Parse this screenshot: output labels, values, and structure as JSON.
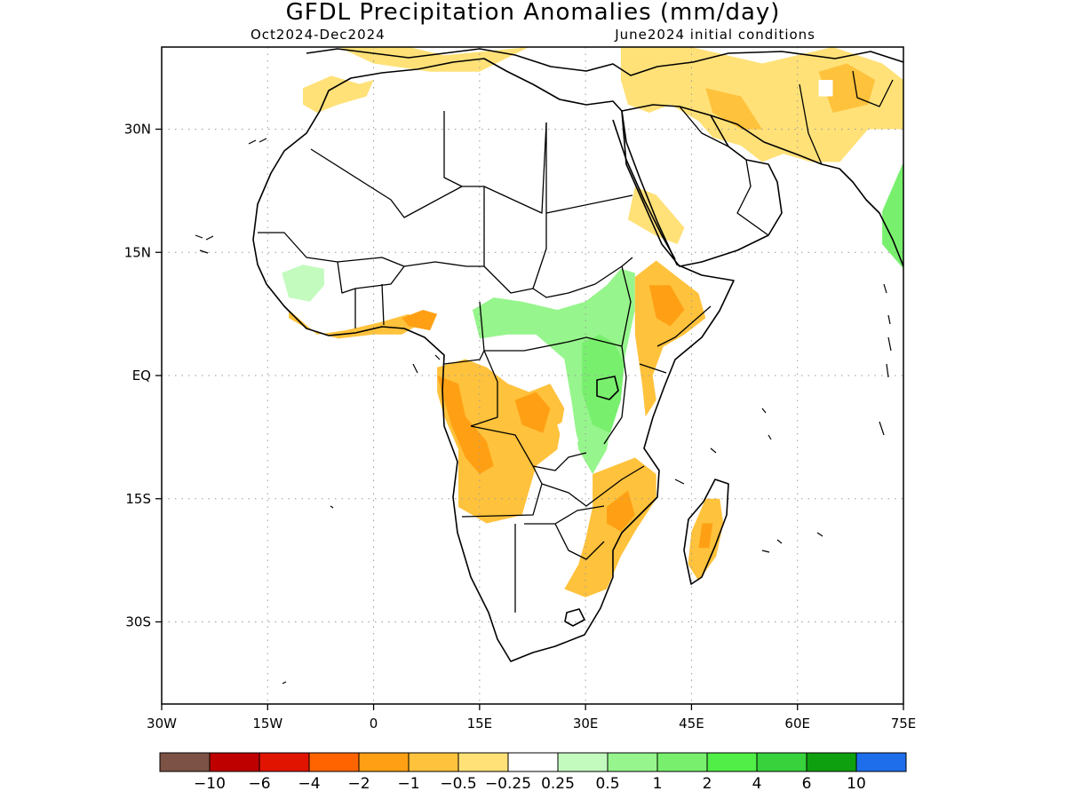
{
  "title": "GFDL Precipitation Anomalies (mm/day)",
  "subtitle_left": "Oct2024-Dec2024",
  "subtitle_right": "June2024 initial conditions",
  "map": {
    "lon_range": [
      -30,
      75
    ],
    "lat_range": [
      -40,
      40
    ],
    "lon_ticks": [
      {
        "value": -30,
        "label": "30W"
      },
      {
        "value": -15,
        "label": "15W"
      },
      {
        "value": 0,
        "label": "0"
      },
      {
        "value": 15,
        "label": "15E"
      },
      {
        "value": 30,
        "label": "30E"
      },
      {
        "value": 45,
        "label": "45E"
      },
      {
        "value": 60,
        "label": "60E"
      },
      {
        "value": 75,
        "label": "75E"
      }
    ],
    "lat_ticks": [
      {
        "value": 30,
        "label": "30N"
      },
      {
        "value": 15,
        "label": "15N"
      },
      {
        "value": 0,
        "label": "EQ"
      },
      {
        "value": -15,
        "label": "15S"
      },
      {
        "value": -30,
        "label": "30S"
      }
    ],
    "grid": "dotted",
    "regions": [
      {
        "id": "sahel-west-wet",
        "color": "#c3fbbf",
        "category": "0.25 to 0.5",
        "poly": [
          [
            -13,
            12.5
          ],
          [
            -10,
            13.5
          ],
          [
            -7,
            13
          ],
          [
            -7,
            11
          ],
          [
            -9,
            9
          ],
          [
            -12,
            9.5
          ]
        ]
      },
      {
        "id": "central-africa-wet",
        "color": "#96f58c",
        "category": "0.5 to 1",
        "poly": [
          [
            14,
            8
          ],
          [
            17,
            9.5
          ],
          [
            21,
            9
          ],
          [
            26,
            8
          ],
          [
            30,
            9
          ],
          [
            33,
            11
          ],
          [
            35,
            13
          ],
          [
            37,
            12.5
          ],
          [
            37,
            8
          ],
          [
            36,
            4
          ],
          [
            35,
            0
          ],
          [
            34,
            -4
          ],
          [
            33,
            -9
          ],
          [
            31,
            -12
          ],
          [
            29,
            -9
          ],
          [
            28,
            -3
          ],
          [
            27,
            2
          ],
          [
            23,
            5
          ],
          [
            19,
            5
          ],
          [
            15,
            4.5
          ]
        ]
      },
      {
        "id": "great-lakes-wet",
        "color": "#78f06e",
        "category": "1 to 2",
        "poly": [
          [
            29.5,
            4
          ],
          [
            32,
            5
          ],
          [
            34,
            4
          ],
          [
            35.5,
            1.5
          ],
          [
            35,
            -3
          ],
          [
            33.5,
            -7
          ],
          [
            31,
            -6
          ],
          [
            29.5,
            -2
          ]
        ]
      },
      {
        "id": "india-wet",
        "color": "#78f06e",
        "category": "1 to 2",
        "poly": [
          [
            72,
            16
          ],
          [
            75,
            13
          ],
          [
            75,
            26
          ],
          [
            72,
            20
          ]
        ]
      },
      {
        "id": "ethiopia-dry",
        "color": "#ffc23c",
        "category": "-1 to -0.5",
        "poly": [
          [
            37,
            12
          ],
          [
            40,
            14
          ],
          [
            43,
            12
          ],
          [
            46,
            10
          ],
          [
            47,
            7
          ],
          [
            44,
            5
          ],
          [
            41,
            3.5
          ],
          [
            39.5,
            0
          ],
          [
            40,
            -3
          ],
          [
            38.5,
            -5
          ],
          [
            38,
            -1
          ],
          [
            37,
            5
          ]
        ]
      },
      {
        "id": "ethiopia-dry-core",
        "color": "#ffa014",
        "category": "-2 to -1",
        "poly": [
          [
            39,
            11
          ],
          [
            42,
            11
          ],
          [
            44,
            8
          ],
          [
            42,
            6
          ],
          [
            40,
            7
          ]
        ]
      },
      {
        "id": "gulf-guinea-dry",
        "color": "#ffc23c",
        "category": "-1 to -0.5",
        "poly": [
          [
            -12,
            8
          ],
          [
            -8,
            5
          ],
          [
            -4,
            5.5
          ],
          [
            1,
            6.5
          ],
          [
            5,
            7.5
          ],
          [
            6,
            6
          ],
          [
            4,
            5
          ],
          [
            0,
            5
          ],
          [
            -5,
            4.5
          ],
          [
            -9,
            5.5
          ],
          [
            -12,
            7
          ]
        ]
      },
      {
        "id": "nigeria-dry",
        "color": "#ffa014",
        "category": "-2 to -1",
        "poly": [
          [
            4,
            7
          ],
          [
            7,
            8
          ],
          [
            9,
            7.5
          ],
          [
            8,
            5.5
          ],
          [
            5,
            6
          ]
        ]
      },
      {
        "id": "congo-angola-dry",
        "color": "#ffc23c",
        "category": "-1 to -0.5",
        "poly": [
          [
            9,
            1
          ],
          [
            13,
            2
          ],
          [
            16,
            1
          ],
          [
            19,
            -1
          ],
          [
            22,
            -2
          ],
          [
            25,
            -1
          ],
          [
            27,
            -4
          ],
          [
            26,
            -9
          ],
          [
            23,
            -11
          ],
          [
            21,
            -17
          ],
          [
            16,
            -18
          ],
          [
            12,
            -16
          ],
          [
            12,
            -9
          ],
          [
            10,
            -5
          ],
          [
            9,
            -2
          ]
        ]
      },
      {
        "id": "angola-dry-core",
        "color": "#ffa014",
        "category": "-2 to -1",
        "poly": [
          [
            9,
            0
          ],
          [
            12,
            -1
          ],
          [
            13,
            -5
          ],
          [
            16,
            -8
          ],
          [
            17,
            -11
          ],
          [
            15,
            -12
          ],
          [
            13,
            -10
          ],
          [
            11,
            -6
          ],
          [
            10,
            -3
          ]
        ]
      },
      {
        "id": "congo-east-dry",
        "color": "#ffa014",
        "category": "-2 to -1",
        "poly": [
          [
            20,
            -3
          ],
          [
            23,
            -2
          ],
          [
            25,
            -4
          ],
          [
            24,
            -7
          ],
          [
            21,
            -6
          ]
        ]
      },
      {
        "id": "southeast-africa-dry",
        "color": "#ffc23c",
        "category": "-1 to -0.5",
        "poly": [
          [
            31,
            -12
          ],
          [
            34,
            -11
          ],
          [
            37,
            -10
          ],
          [
            40,
            -12
          ],
          [
            40,
            -15
          ],
          [
            37,
            -19
          ],
          [
            35,
            -22
          ],
          [
            33,
            -26
          ],
          [
            30,
            -27
          ],
          [
            27,
            -26
          ],
          [
            29,
            -23
          ],
          [
            30,
            -20
          ],
          [
            31,
            -16
          ]
        ]
      },
      {
        "id": "mozambique-dry-core",
        "color": "#ffa014",
        "category": "-2 to -1",
        "poly": [
          [
            33,
            -16
          ],
          [
            36,
            -14
          ],
          [
            37,
            -17
          ],
          [
            35,
            -19
          ],
          [
            33,
            -18
          ]
        ]
      },
      {
        "id": "madagascar-dry",
        "color": "#ffc23c",
        "category": "-1 to -0.5",
        "poly": [
          [
            47,
            -15
          ],
          [
            49,
            -15
          ],
          [
            49.5,
            -18
          ],
          [
            48.5,
            -22
          ],
          [
            46,
            -25
          ],
          [
            44.5,
            -23
          ],
          [
            45,
            -19
          ]
        ]
      },
      {
        "id": "madagascar-dry-core",
        "color": "#ffa014",
        "category": "-2 to -1",
        "poly": [
          [
            46.5,
            -18
          ],
          [
            48,
            -18
          ],
          [
            47.5,
            -21
          ],
          [
            46,
            -21
          ]
        ]
      },
      {
        "id": "north-africa-dry",
        "color": "#ffe178",
        "category": "-0.5 to -0.25",
        "poly": [
          [
            -10,
            35
          ],
          [
            -6,
            36.5
          ],
          [
            -2,
            35.5
          ],
          [
            0,
            36
          ],
          [
            -1,
            34
          ],
          [
            -5,
            33
          ],
          [
            -8,
            32
          ],
          [
            -10,
            33
          ]
        ]
      },
      {
        "id": "mediterranean-dry",
        "color": "#ffe178",
        "category": "-0.5 to -0.25",
        "poly": [
          [
            -5,
            40
          ],
          [
            5,
            40
          ],
          [
            10,
            39
          ],
          [
            16,
            39.5
          ],
          [
            22,
            40
          ],
          [
            15,
            37
          ],
          [
            8,
            37
          ],
          [
            0,
            38
          ]
        ]
      },
      {
        "id": "middle-east-dry",
        "color": "#ffe178",
        "category": "-0.5 to -0.25",
        "poly": [
          [
            35,
            40
          ],
          [
            45,
            40
          ],
          [
            55,
            38
          ],
          [
            65,
            40
          ],
          [
            72,
            38
          ],
          [
            75,
            36
          ],
          [
            75,
            30
          ],
          [
            70,
            30
          ],
          [
            66,
            26
          ],
          [
            62,
            26
          ],
          [
            58,
            27
          ],
          [
            55,
            26
          ],
          [
            52,
            28
          ],
          [
            48,
            29
          ],
          [
            46,
            31
          ],
          [
            42,
            33
          ],
          [
            39,
            32
          ],
          [
            36,
            33
          ],
          [
            35,
            36
          ]
        ]
      },
      {
        "id": "iran-dry-core",
        "color": "#ffc23c",
        "category": "-1 to -0.5",
        "poly": [
          [
            47,
            35
          ],
          [
            52,
            34
          ],
          [
            55,
            30
          ],
          [
            52,
            30
          ],
          [
            48,
            32
          ]
        ]
      },
      {
        "id": "pakistan-dry-core",
        "color": "#ffc23c",
        "category": "-1 to -0.5",
        "poly": [
          [
            63,
            37
          ],
          [
            67,
            38
          ],
          [
            71,
            36
          ],
          [
            70,
            33
          ],
          [
            65,
            32
          ]
        ]
      },
      {
        "id": "arabia-dry",
        "color": "#ffe178",
        "category": "-0.5 to -0.25",
        "poly": [
          [
            36,
            19
          ],
          [
            40,
            17
          ],
          [
            43,
            16
          ],
          [
            44,
            18
          ],
          [
            40,
            22
          ],
          [
            37,
            23
          ]
        ]
      }
    ],
    "white_holes": [
      {
        "poly": [
          [
            63,
            36
          ],
          [
            65,
            36
          ],
          [
            65,
            34
          ],
          [
            63,
            34
          ]
        ]
      },
      {
        "poly": [
          [
            26,
            -6
          ],
          [
            28,
            -5
          ],
          [
            29,
            -8
          ],
          [
            27,
            -9
          ]
        ]
      }
    ]
  },
  "colorbar": {
    "colors": [
      "#7b5245",
      "#be0000",
      "#e11400",
      "#ff6400",
      "#ffa014",
      "#ffc23c",
      "#ffe178",
      "#ffffff",
      "#c3fbbf",
      "#96f58c",
      "#78f06e",
      "#50ee46",
      "#37d23c",
      "#0fa00f",
      "#1e6eeb"
    ],
    "labels": [
      "-10",
      "-6",
      "-4",
      "-2",
      "-1",
      "-0.5",
      "-0.25",
      "0.25",
      "0.5",
      "1",
      "2",
      "4",
      "6",
      "10"
    ]
  }
}
